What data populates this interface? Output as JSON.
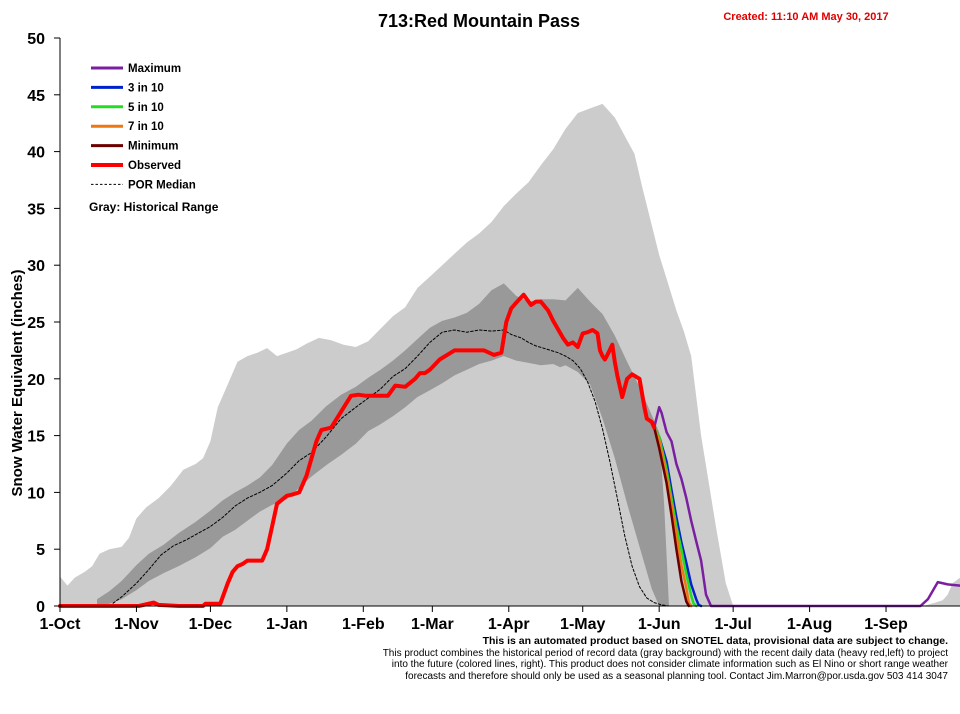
{
  "chart_data": {
    "type": "line",
    "title": "713:Red Mountain Pass",
    "created": "Created: 11:10 AM May 30, 2017",
    "ylabel": "Snow Water Equivalent (inches)",
    "xlabel": "",
    "ylim": [
      0,
      50
    ],
    "yticks": [
      "0",
      "5",
      "10",
      "15",
      "20",
      "25",
      "30",
      "35",
      "40",
      "45",
      "50"
    ],
    "xlim_days": [
      0,
      365
    ],
    "xtick_labels": [
      "1-Oct",
      "1-Nov",
      "1-Dec",
      "1-Jan",
      "1-Feb",
      "1-Mar",
      "1-Apr",
      "1-May",
      "1-Jun",
      "1-Jul",
      "1-Aug",
      "1-Sep"
    ],
    "xtick_days": [
      0,
      31,
      61,
      92,
      123,
      151,
      182,
      212,
      243,
      273,
      304,
      335
    ],
    "grid": false,
    "legend_placement": "top-left",
    "legend": [
      {
        "label": "Maximum",
        "color": "#7b1fa2",
        "style": "solid"
      },
      {
        "label": "3 in 10",
        "color": "#0022cc",
        "style": "solid"
      },
      {
        "label": "5 in 10",
        "color": "#22dd22",
        "style": "solid"
      },
      {
        "label": "7 in 10",
        "color": "#ee7711",
        "style": "solid"
      },
      {
        "label": "Minimum",
        "color": "#6b0000",
        "style": "solid"
      },
      {
        "label": "Observed",
        "color": "#ff0000",
        "style": "solid"
      },
      {
        "label": "POR Median",
        "color": "#000000",
        "style": "dashed"
      }
    ],
    "gray_note": "Gray: Historical Range",
    "bands": {
      "historical_range": {
        "color": "#cccccc",
        "x": [
          0,
          3,
          6,
          10,
          13,
          16,
          20,
          25,
          28,
          31,
          35,
          40,
          45,
          50,
          55,
          58,
          61,
          64,
          68,
          72,
          76,
          80,
          84,
          88,
          92,
          96,
          100,
          105,
          110,
          115,
          120,
          125,
          130,
          135,
          140,
          145,
          150,
          155,
          160,
          165,
          170,
          175,
          180,
          185,
          190,
          195,
          200,
          205,
          210,
          215,
          220,
          225,
          230,
          233,
          236,
          240,
          243,
          246,
          250,
          253,
          256,
          260,
          263,
          266,
          270,
          273,
          276,
          280,
          290,
          300,
          310,
          320,
          330,
          340,
          350,
          355,
          358,
          360,
          362,
          365
        ],
        "upper": [
          2.6,
          1.8,
          2.5,
          3.0,
          3.5,
          4.6,
          5.0,
          5.2,
          6.0,
          7.7,
          8.7,
          9.5,
          10.6,
          12.0,
          12.5,
          13.0,
          14.5,
          17.5,
          19.5,
          21.5,
          22.0,
          22.3,
          22.7,
          22.0,
          22.3,
          22.6,
          23.1,
          23.6,
          23.4,
          23.0,
          22.8,
          23.3,
          24.4,
          25.5,
          26.3,
          28.0,
          29.0,
          30.0,
          31.0,
          32.0,
          32.8,
          33.8,
          35.2,
          36.3,
          37.3,
          38.8,
          40.2,
          42.0,
          43.4,
          43.8,
          44.2,
          43.0,
          41.0,
          39.8,
          37.0,
          33.5,
          30.9,
          28.8,
          26.0,
          24.2,
          22.0,
          15.0,
          11.0,
          7.0,
          2.0,
          0.0,
          0.0,
          0,
          0,
          0,
          0,
          0,
          0,
          0,
          0,
          0.3,
          0.5,
          1.0,
          2.0,
          2.5
        ],
        "lower": [
          0,
          0,
          0,
          0,
          0,
          0,
          0,
          0,
          0,
          0,
          0,
          0,
          0,
          0,
          0,
          0,
          0,
          0,
          0,
          0,
          0,
          0,
          0,
          0,
          0,
          0,
          0,
          0,
          0,
          0,
          0,
          0,
          0,
          0,
          0,
          0,
          0,
          0,
          0,
          0,
          0,
          0,
          0,
          0,
          0,
          0,
          0,
          0,
          0,
          0,
          0,
          0,
          0,
          0,
          0,
          0,
          0,
          0,
          0,
          0,
          0,
          0,
          0,
          0,
          0,
          0,
          0,
          0,
          0,
          0,
          0,
          0,
          0,
          0,
          0,
          0,
          0,
          0,
          0,
          0
        ],
        "inner_lower_x": [
          48,
          55,
          62,
          70,
          80,
          90,
          100,
          110,
          120,
          130,
          140,
          150,
          160,
          170,
          180,
          185,
          190,
          195,
          200,
          205,
          210,
          215,
          220,
          225,
          230,
          236,
          240,
          243
        ],
        "inner_lower": [
          0,
          0.8,
          1.3,
          1.8,
          2.8,
          3.5,
          4.5,
          5.5,
          6.6,
          7.5,
          8.3,
          9.8,
          11.5,
          12.5,
          14.0,
          15.8,
          17.5,
          19.3,
          20.8,
          21.2,
          20.6,
          19.5,
          16.5,
          13.0,
          9.0,
          4.5,
          1.5,
          0
        ]
      },
      "interquartile": {
        "color": "#999999",
        "x": [
          15,
          20,
          25,
          31,
          36,
          42,
          48,
          55,
          61,
          66,
          71,
          76,
          81,
          86,
          92,
          97,
          102,
          108,
          114,
          120,
          125,
          130,
          135,
          140,
          145,
          150,
          155,
          160,
          165,
          170,
          175,
          180,
          185,
          190,
          195,
          200,
          205,
          210,
          215,
          220,
          225,
          230,
          235,
          240,
          243,
          245,
          247
        ],
        "upper": [
          0.6,
          1.3,
          2.2,
          3.6,
          4.6,
          5.4,
          6.4,
          7.4,
          8.4,
          9.3,
          10.0,
          10.6,
          11.3,
          12.4,
          14.3,
          15.5,
          16.3,
          17.6,
          18.6,
          19.3,
          20.1,
          20.8,
          21.6,
          22.5,
          23.5,
          24.5,
          25.1,
          25.4,
          25.8,
          26.6,
          27.8,
          28.4,
          27.3,
          26.8,
          27.0,
          27.0,
          26.9,
          28.0,
          26.8,
          25.7,
          23.8,
          21.5,
          19.3,
          16.8,
          15.3,
          9.0,
          0
        ],
        "lower": [
          0,
          0.2,
          0.6,
          1.4,
          2.2,
          2.9,
          3.5,
          4.3,
          5.1,
          6.1,
          6.7,
          7.5,
          8.3,
          8.9,
          9.4,
          10.4,
          11.4,
          12.4,
          13.3,
          14.3,
          15.4,
          16.0,
          16.7,
          17.5,
          18.4,
          19.0,
          19.6,
          20.3,
          20.8,
          21.3,
          21.6,
          22.0,
          21.6,
          21.4,
          21.2,
          21.3,
          20.8,
          20.0,
          17.2,
          13.5,
          10.0,
          7.0,
          3.8,
          1.3,
          0,
          0,
          0
        ]
      }
    },
    "series": [
      {
        "name": "Observed",
        "color": "#ff0000",
        "x": [
          0,
          32,
          38,
          40,
          48,
          50,
          52,
          54,
          56,
          58,
          59,
          65,
          68,
          70,
          72,
          74,
          76,
          82,
          84,
          86,
          88,
          92,
          94,
          97,
          100,
          102,
          104,
          106,
          108,
          110,
          118,
          121,
          124,
          127,
          130,
          133,
          136,
          140,
          144,
          146,
          148,
          150,
          154,
          160,
          162,
          165,
          168,
          172,
          176,
          179,
          181,
          183,
          185,
          188,
          191,
          193,
          195,
          198,
          200,
          204,
          206,
          208,
          210,
          212,
          214,
          216,
          218,
          219,
          220,
          221,
          222,
          224,
          225,
          226,
          228,
          230,
          232,
          235,
          237,
          238,
          240,
          241
        ],
        "y": [
          0,
          0,
          0.3,
          0.1,
          0,
          0,
          0,
          0,
          0,
          0,
          0.2,
          0.2,
          2.0,
          3.0,
          3.5,
          3.7,
          4.0,
          4.0,
          5.0,
          7.0,
          9.0,
          9.7,
          9.8,
          10.0,
          11.5,
          13.0,
          14.5,
          15.5,
          15.6,
          15.7,
          18.5,
          18.6,
          18.5,
          18.5,
          18.5,
          18.5,
          19.4,
          19.3,
          20.0,
          20.5,
          20.5,
          20.8,
          21.7,
          22.5,
          22.5,
          22.5,
          22.5,
          22.5,
          22.1,
          22.3,
          25.0,
          26.2,
          26.7,
          27.4,
          26.5,
          26.8,
          26.8,
          26.0,
          25.1,
          23.6,
          23.0,
          23.2,
          22.8,
          24.0,
          24.1,
          24.3,
          24.0,
          22.5,
          22.0,
          21.7,
          22.1,
          23.0,
          21.5,
          20.3,
          18.4,
          20.0,
          20.4,
          20.0,
          17.5,
          16.5,
          16.2,
          15.7
        ]
      },
      {
        "name": "POR Median",
        "color": "#000000",
        "dashed": true,
        "x": [
          0,
          20,
          25,
          31,
          36,
          41,
          46,
          51,
          56,
          61,
          66,
          71,
          76,
          81,
          86,
          92,
          97,
          102,
          108,
          114,
          120,
          125,
          130,
          135,
          140,
          145,
          150,
          155,
          160,
          165,
          170,
          175,
          180,
          183,
          187,
          190,
          193,
          196,
          199,
          202,
          205,
          208,
          211,
          214,
          217,
          220,
          223,
          226,
          229,
          232,
          235,
          238,
          241,
          244,
          247
        ],
        "y": [
          0,
          0,
          0.8,
          2.0,
          3.2,
          4.5,
          5.3,
          5.8,
          6.4,
          7.0,
          7.8,
          8.8,
          9.5,
          10.0,
          10.6,
          11.7,
          12.8,
          13.5,
          14.9,
          16.5,
          17.5,
          18.3,
          19.1,
          20.2,
          20.9,
          22.0,
          23.2,
          24.1,
          24.3,
          24.1,
          24.3,
          24.2,
          24.3,
          23.9,
          23.6,
          23.2,
          22.9,
          22.7,
          22.5,
          22.3,
          22.0,
          21.6,
          20.9,
          19.7,
          18.0,
          15.6,
          12.7,
          9.5,
          6.2,
          3.5,
          1.7,
          0.7,
          0.3,
          0.1,
          0
        ]
      },
      {
        "name": "Maximum",
        "color": "#7b1fa2",
        "x": [
          241,
          243,
          244,
          246,
          248,
          250,
          252,
          254,
          256,
          258,
          260,
          262,
          264,
          266,
          268,
          270,
          272,
          346,
          349,
          352,
          356,
          360,
          365
        ],
        "y": [
          15.7,
          17.5,
          17.0,
          15.3,
          14.5,
          12.5,
          11.2,
          9.5,
          7.5,
          5.7,
          4.0,
          1.0,
          0,
          0,
          0,
          0,
          0,
          0,
          0,
          0.6,
          2.1,
          1.9,
          1.8
        ]
      },
      {
        "name": "3 in 10",
        "color": "#0022cc",
        "x": [
          241,
          243,
          246,
          248,
          250,
          252,
          254,
          256,
          258,
          259,
          260
        ],
        "y": [
          15.7,
          14.9,
          12.7,
          10.2,
          7.8,
          5.6,
          3.8,
          1.9,
          0.6,
          0.1,
          0
        ]
      },
      {
        "name": "5 in 10",
        "color": "#22dd22",
        "x": [
          241,
          243,
          246,
          248,
          250,
          252,
          254,
          256,
          257,
          258
        ],
        "y": [
          15.7,
          14.9,
          12.0,
          9.5,
          7.0,
          5.0,
          2.8,
          0.9,
          0.2,
          0
        ]
      },
      {
        "name": "7 in 10",
        "color": "#ee7711",
        "x": [
          241,
          243,
          246,
          248,
          250,
          252,
          254,
          255,
          256
        ],
        "y": [
          15.7,
          14.6,
          11.5,
          8.9,
          6.3,
          3.6,
          1.6,
          0.3,
          0
        ]
      },
      {
        "name": "Minimum",
        "color": "#6b0000",
        "x": [
          241,
          243,
          246,
          248,
          250,
          252,
          254,
          255
        ],
        "y": [
          15.7,
          13.9,
          10.8,
          8.0,
          5.0,
          2.2,
          0.4,
          0
        ]
      }
    ]
  },
  "disclaimer": {
    "heading": "This is an automated product based on SNOTEL data, provisional data are subject to change.",
    "line1": "This product combines the historical period of record data (gray background) with the recent daily data (heavy red,left) to project",
    "line2": "into the future (colored lines, right). This product does not consider climate information such as El Nino or short range weather",
    "line3": "forecasts and therefore should only be used as a seasonal planning tool. Contact Jim.Marron@por.usda.gov 503 414 3047"
  }
}
